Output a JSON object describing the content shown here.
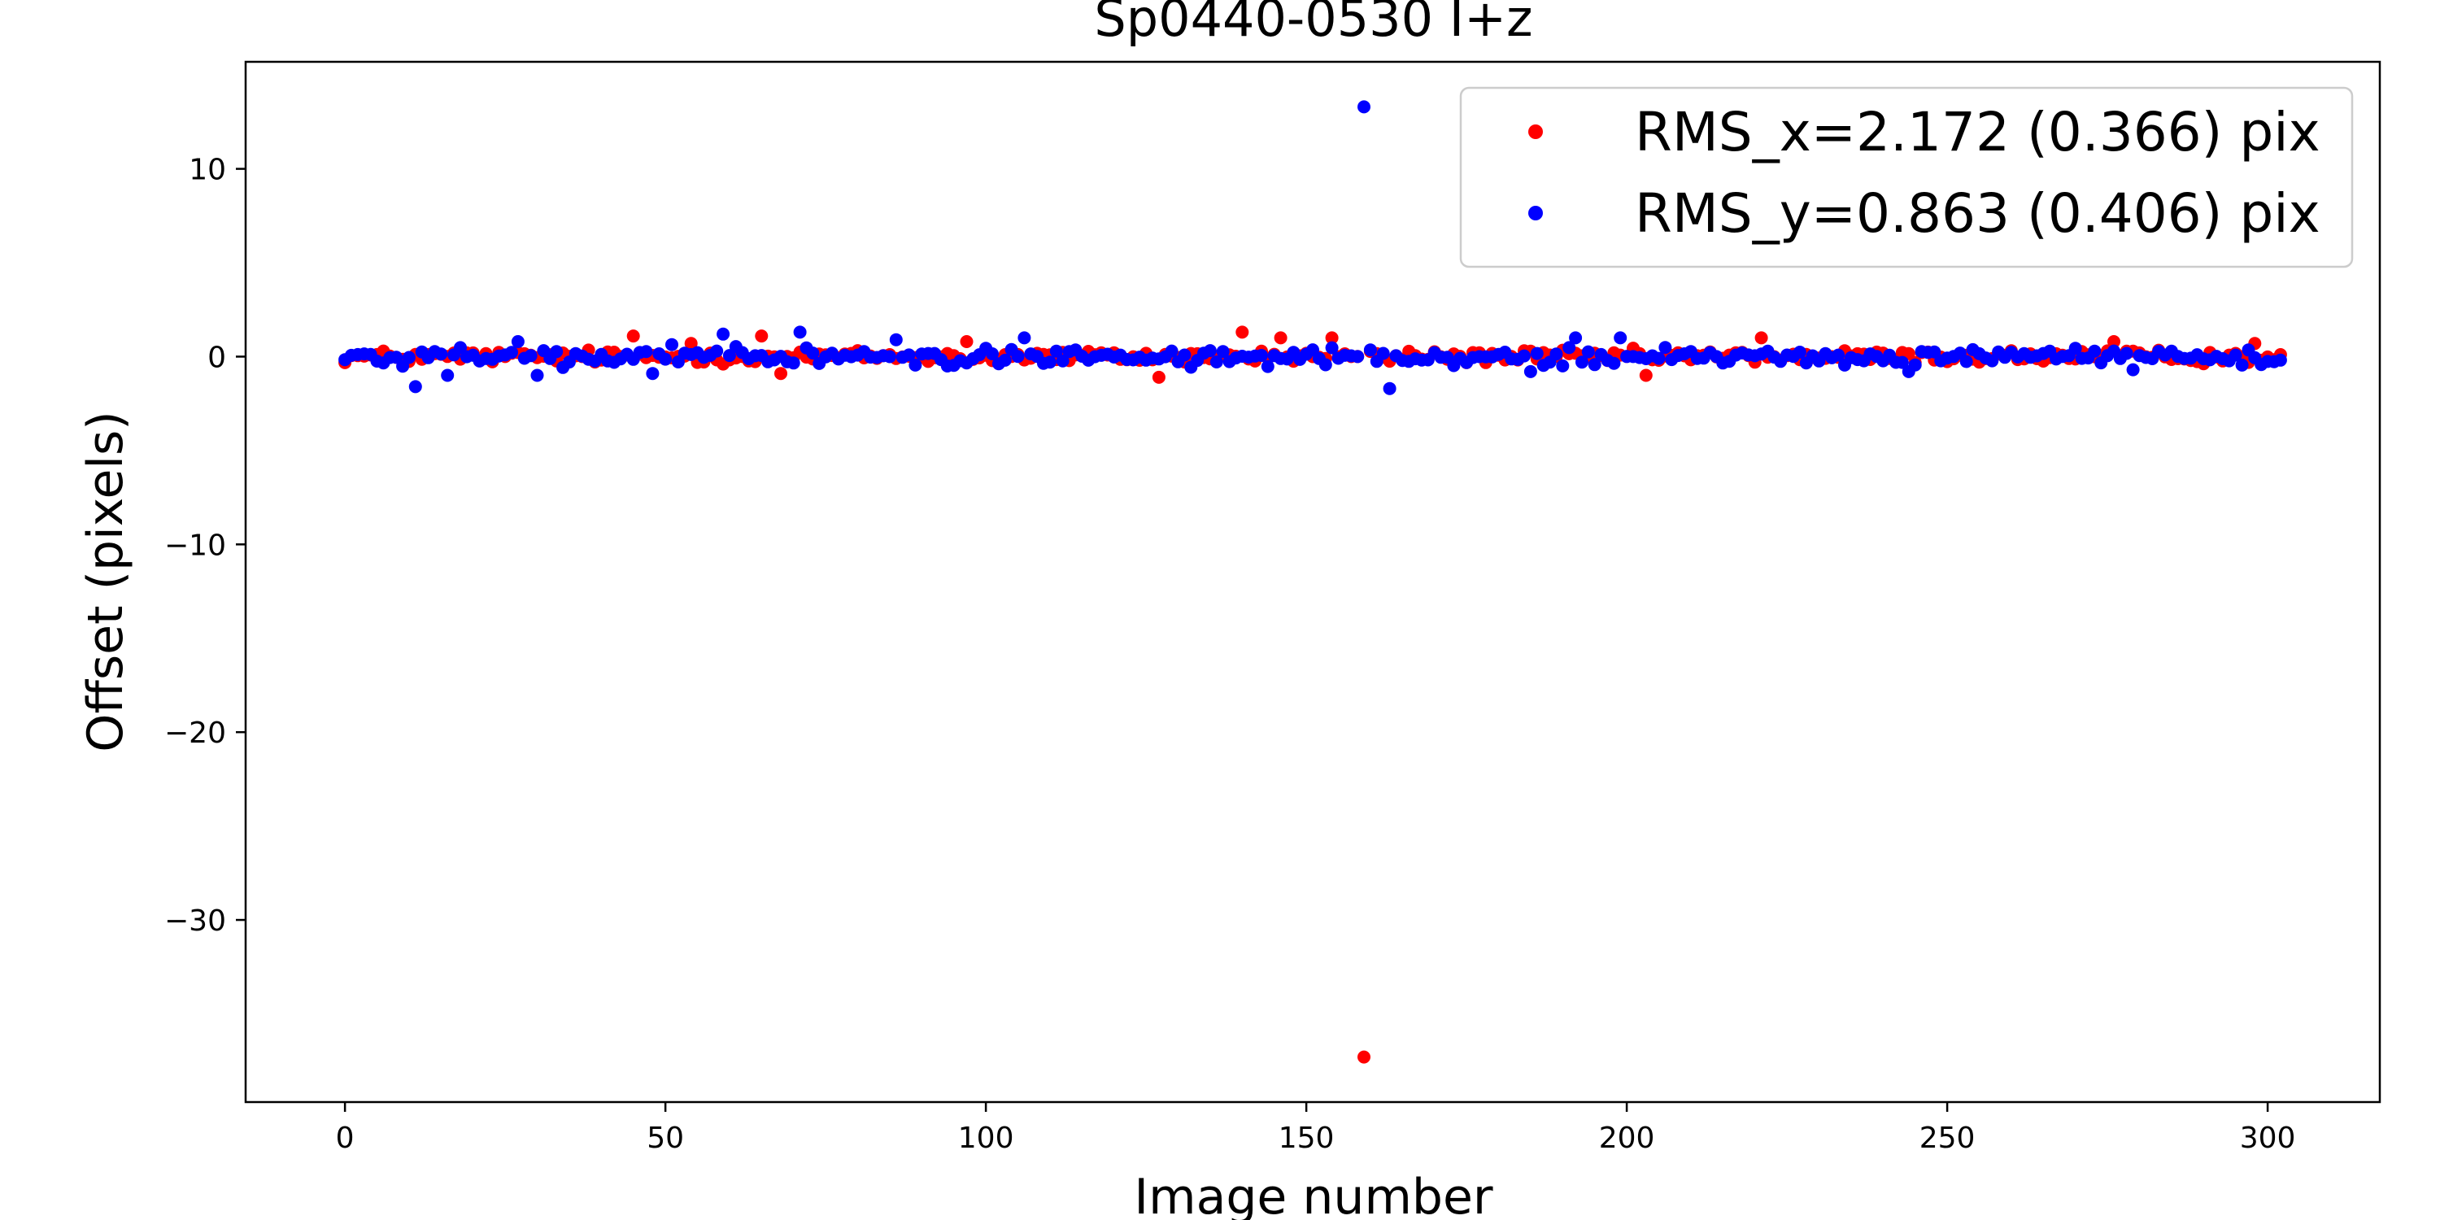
{
  "chart_data": {
    "type": "scatter",
    "title": "Sp0440-0530 I+z",
    "xlabel": "Image number",
    "ylabel": "Offset (pixels)",
    "xlim": [
      -15.5,
      317.5
    ],
    "ylim": [
      -39.7,
      15.7
    ],
    "xticks": [
      0,
      50,
      100,
      150,
      200,
      250,
      300
    ],
    "yticks": [
      -30,
      -20,
      -10,
      0,
      10
    ],
    "yticklabels": [
      "−30",
      "−20",
      "−10",
      "0",
      "10"
    ],
    "grid": false,
    "legend_position": "top-right",
    "series": [
      {
        "name": "RMS_x=2.172 (0.366) pix",
        "color": "#ff0000",
        "noise_amplitude": 0.35,
        "x_range": [
          0,
          302
        ],
        "outliers": [
          {
            "x": 45,
            "y": 1.1
          },
          {
            "x": 54,
            "y": 0.7
          },
          {
            "x": 65,
            "y": 1.1
          },
          {
            "x": 68,
            "y": -0.9
          },
          {
            "x": 97,
            "y": 0.8
          },
          {
            "x": 127,
            "y": -1.1
          },
          {
            "x": 140,
            "y": 1.3
          },
          {
            "x": 146,
            "y": 1.0
          },
          {
            "x": 154,
            "y": 1.0
          },
          {
            "x": 159,
            "y": -37.3
          },
          {
            "x": 203,
            "y": -1.0
          },
          {
            "x": 221,
            "y": 1.0
          },
          {
            "x": 276,
            "y": 0.8
          },
          {
            "x": 298,
            "y": 0.7
          }
        ]
      },
      {
        "name": "RMS_y=0.863 (0.406) pix",
        "color": "#0000ff",
        "noise_amplitude": 0.45,
        "x_range": [
          0,
          302
        ],
        "outliers": [
          {
            "x": 11,
            "y": -1.6
          },
          {
            "x": 16,
            "y": -1.0
          },
          {
            "x": 27,
            "y": 0.8
          },
          {
            "x": 30,
            "y": -1.0
          },
          {
            "x": 48,
            "y": -0.9
          },
          {
            "x": 59,
            "y": 1.2
          },
          {
            "x": 71,
            "y": 1.3
          },
          {
            "x": 86,
            "y": 0.9
          },
          {
            "x": 106,
            "y": 1.0
          },
          {
            "x": 159,
            "y": 13.3
          },
          {
            "x": 163,
            "y": -1.7
          },
          {
            "x": 185,
            "y": -0.8
          },
          {
            "x": 192,
            "y": 1.0
          },
          {
            "x": 199,
            "y": 1.0
          },
          {
            "x": 244,
            "y": -0.8
          },
          {
            "x": 279,
            "y": -0.7
          }
        ]
      }
    ]
  }
}
